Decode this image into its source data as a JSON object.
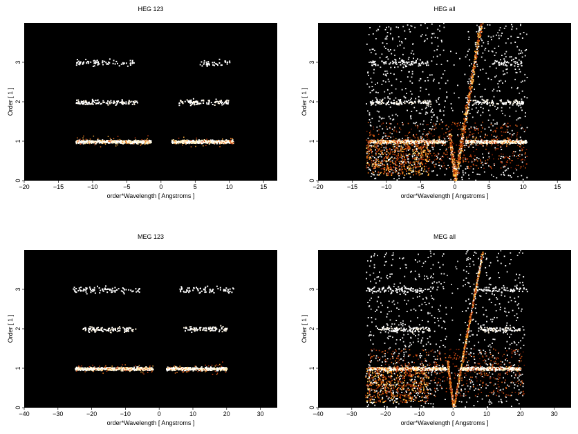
{
  "chart_data": [
    {
      "type": "heatmap",
      "title": "HEG 123",
      "xlabel": "order*Wavelength [ Angstroms ]",
      "ylabel": "Order [ 1 ]",
      "xlim": [
        -20,
        17
      ],
      "ylim": [
        0,
        4
      ],
      "xticks": [
        -20,
        -15,
        -10,
        -5,
        0,
        5,
        10,
        15
      ],
      "yticks": [
        0,
        1,
        2,
        3
      ],
      "background": "#000000",
      "grid": false,
      "bands": [
        {
          "order": 1,
          "x_ranges": [
            [
              -12.5,
              -1.5
            ],
            [
              1.5,
              10.5
            ]
          ],
          "intensity": "high"
        },
        {
          "order": 2,
          "x_ranges": [
            [
              -12.5,
              -3.5
            ],
            [
              2.5,
              10
            ]
          ],
          "intensity": "medium"
        },
        {
          "order": 3,
          "x_ranges": [
            [
              -12.5,
              -4
            ],
            [
              5.5,
              10
            ]
          ],
          "intensity": "low"
        }
      ],
      "diagonal_wings": false
    },
    {
      "type": "heatmap",
      "title": "HEG all",
      "xlabel": "order*Wavelength [ Angstroms ]",
      "ylabel": "Order [ 1 ]",
      "xlim": [
        -20,
        17
      ],
      "ylim": [
        0,
        4
      ],
      "xticks": [
        -20,
        -15,
        -10,
        -5,
        0,
        5,
        10,
        15
      ],
      "yticks": [
        0,
        1,
        2,
        3
      ],
      "background": "#000000",
      "grid": false,
      "bands": [
        {
          "order": 1,
          "x_ranges": [
            [
              -12.5,
              -1.5
            ],
            [
              1.5,
              10.5
            ]
          ],
          "intensity": "high"
        },
        {
          "order": 2,
          "x_ranges": [
            [
              -12.5,
              -3.5
            ],
            [
              2.5,
              10
            ]
          ],
          "intensity": "medium"
        },
        {
          "order": 3,
          "x_ranges": [
            [
              -12.5,
              -4
            ],
            [
              5.5,
              10
            ]
          ],
          "intensity": "low"
        }
      ],
      "diagonal_wings": true
    },
    {
      "type": "heatmap",
      "title": "MEG 123",
      "xlabel": "order*Wavelength [ Angstroms ]",
      "ylabel": "Order [ 1 ]",
      "xlim": [
        -40,
        35
      ],
      "ylim": [
        0,
        4
      ],
      "xticks": [
        -40,
        -30,
        -20,
        -10,
        0,
        10,
        20,
        30
      ],
      "yticks": [
        0,
        1,
        2,
        3
      ],
      "background": "#000000",
      "grid": false,
      "bands": [
        {
          "order": 1,
          "x_ranges": [
            [
              -25,
              -2
            ],
            [
              2,
              20
            ]
          ],
          "intensity": "high"
        },
        {
          "order": 2,
          "x_ranges": [
            [
              -23,
              -7
            ],
            [
              7,
              20
            ]
          ],
          "intensity": "medium"
        },
        {
          "order": 3,
          "x_ranges": [
            [
              -26,
              -6
            ],
            [
              6,
              22
            ]
          ],
          "intensity": "low"
        }
      ],
      "diagonal_wings": false
    },
    {
      "type": "heatmap",
      "title": "MEG all",
      "xlabel": "order*Wavelength [ Angstroms ]",
      "ylabel": "Order [ 1 ]",
      "xlim": [
        -40,
        35
      ],
      "ylim": [
        0,
        4
      ],
      "xticks": [
        -40,
        -30,
        -20,
        -10,
        0,
        10,
        20,
        30
      ],
      "yticks": [
        0,
        1,
        2,
        3
      ],
      "background": "#000000",
      "grid": false,
      "bands": [
        {
          "order": 1,
          "x_ranges": [
            [
              -25,
              -2
            ],
            [
              2,
              20
            ]
          ],
          "intensity": "high"
        },
        {
          "order": 2,
          "x_ranges": [
            [
              -23,
              -7
            ],
            [
              7,
              20
            ]
          ],
          "intensity": "medium"
        },
        {
          "order": 3,
          "x_ranges": [
            [
              -26,
              -6
            ],
            [
              6,
              22
            ]
          ],
          "intensity": "low"
        }
      ],
      "diagonal_wings": true
    }
  ]
}
